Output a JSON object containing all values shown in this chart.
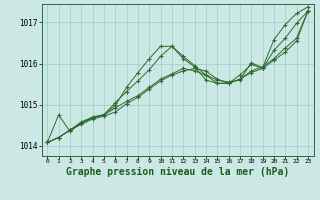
{
  "background_color": "#cce8e4",
  "grid_color": "#99cccc",
  "line_color": "#2d6a2d",
  "marker_color": "#2d6a2d",
  "title": "Graphe pression niveau de la mer (hPa)",
  "title_fontsize": 7,
  "xlim": [
    -0.5,
    23.5
  ],
  "ylim": [
    1013.75,
    1017.45
  ],
  "xticks": [
    0,
    1,
    2,
    3,
    4,
    5,
    6,
    7,
    8,
    9,
    10,
    11,
    12,
    13,
    14,
    15,
    16,
    17,
    18,
    19,
    20,
    21,
    22,
    23
  ],
  "yticks": [
    1014,
    1015,
    1016,
    1017
  ],
  "series": [
    {
      "x": [
        0,
        1,
        2,
        3,
        4,
        5,
        6,
        7,
        8,
        9,
        10,
        11,
        12,
        13,
        14,
        15,
        16,
        17,
        18,
        19,
        20,
        21,
        22,
        23
      ],
      "y": [
        1014.08,
        1014.75,
        1014.35,
        1014.55,
        1014.68,
        1014.75,
        1015.05,
        1015.32,
        1015.58,
        1015.85,
        1016.18,
        1016.42,
        1016.18,
        1015.95,
        1015.72,
        1015.6,
        1015.55,
        1015.6,
        1016.02,
        1015.9,
        1016.58,
        1016.95,
        1017.22,
        1017.38
      ]
    },
    {
      "x": [
        0,
        1,
        2,
        3,
        4,
        5,
        6,
        7,
        8,
        9,
        10,
        11,
        12,
        13,
        14,
        15,
        16,
        17,
        18,
        19,
        20,
        21,
        22,
        23
      ],
      "y": [
        1014.08,
        1014.2,
        1014.38,
        1014.52,
        1014.65,
        1014.72,
        1014.82,
        1015.02,
        1015.18,
        1015.38,
        1015.58,
        1015.72,
        1015.82,
        1015.88,
        1015.82,
        1015.62,
        1015.52,
        1015.62,
        1015.78,
        1015.88,
        1016.08,
        1016.28,
        1016.55,
        1017.28
      ]
    },
    {
      "x": [
        0,
        1,
        2,
        3,
        4,
        5,
        6,
        7,
        8,
        9,
        10,
        11,
        12,
        13,
        14,
        15,
        16,
        17,
        18,
        19,
        20,
        21,
        22,
        23
      ],
      "y": [
        1014.08,
        1014.2,
        1014.38,
        1014.55,
        1014.68,
        1014.75,
        1014.92,
        1015.08,
        1015.22,
        1015.42,
        1015.62,
        1015.75,
        1015.88,
        1015.82,
        1015.72,
        1015.52,
        1015.52,
        1015.62,
        1015.82,
        1015.92,
        1016.12,
        1016.38,
        1016.62,
        1017.28
      ]
    },
    {
      "x": [
        0,
        1,
        2,
        3,
        4,
        5,
        6,
        7,
        8,
        9,
        10,
        11,
        12,
        13,
        14,
        15,
        16,
        17,
        18,
        19,
        20,
        21,
        22,
        23
      ],
      "y": [
        1014.08,
        1014.2,
        1014.38,
        1014.58,
        1014.7,
        1014.76,
        1014.98,
        1015.42,
        1015.78,
        1016.12,
        1016.42,
        1016.42,
        1016.12,
        1015.92,
        1015.6,
        1015.52,
        1015.52,
        1015.72,
        1015.98,
        1015.88,
        1016.32,
        1016.62,
        1016.98,
        1017.28
      ]
    }
  ]
}
